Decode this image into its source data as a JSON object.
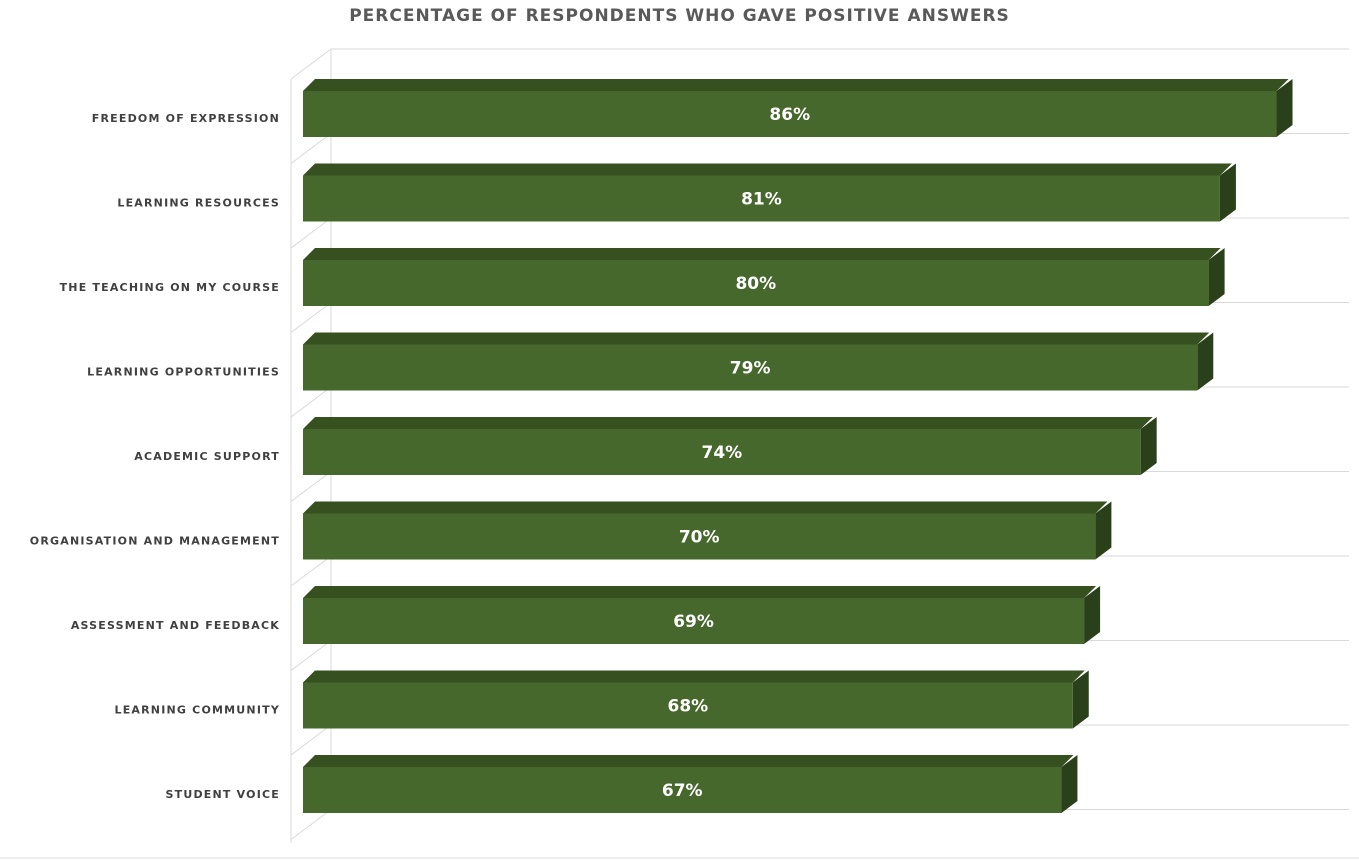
{
  "chart_data": {
    "type": "bar",
    "orientation": "horizontal",
    "style": "3d",
    "title": "PERCENTAGE OF RESPONDENTS WHO GAVE POSITIVE ANSWERS",
    "categories": [
      "FREEDOM OF EXPRESSION",
      "LEARNING RESOURCES",
      "THE TEACHING ON MY COURSE",
      "LEARNING OPPORTUNITIES",
      "ACADEMIC SUPPORT",
      "ORGANISATION AND MANAGEMENT",
      "ASSESSMENT AND FEEDBACK",
      "LEARNING COMMUNITY",
      "STUDENT VOICE"
    ],
    "values": [
      86,
      81,
      80,
      79,
      74,
      70,
      69,
      68,
      67
    ],
    "value_labels": [
      "86%",
      "81%",
      "80%",
      "79%",
      "74%",
      "70%",
      "69%",
      "68%",
      "67%"
    ],
    "xlabel": "",
    "ylabel": "",
    "xlim": [
      0,
      93
    ],
    "grid": true,
    "legend": "none",
    "colors": {
      "bar_front": "#46682C",
      "bar_top": "#365020",
      "bar_side": "#2A401A",
      "gridline": "#D9D9D9",
      "category_text": "#404040",
      "value_text": "#FFFFFF",
      "title_text": "#595959"
    }
  }
}
